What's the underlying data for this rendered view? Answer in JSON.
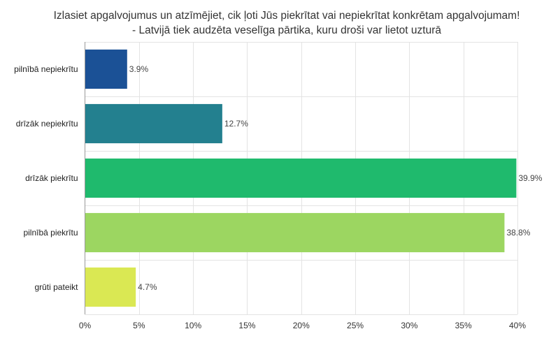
{
  "chart_data": {
    "type": "bar",
    "orientation": "horizontal",
    "title_lines": [
      "Izlasiet apgalvojumus un atzīmējiet, cik ļoti Jūs piekrītat vai nepiekrītat konkrētam apgalvojumam!",
      "- Latvijā tiek audzēta veselīga pārtika, kuru droši var lietot uzturā"
    ],
    "categories": [
      "pilnībā nepiekrītu",
      "drīzāk nepiekrītu",
      "drīzāk piekrītu",
      "pilnībā piekrītu",
      "grūti pateikt"
    ],
    "values": [
      3.9,
      12.7,
      39.9,
      38.8,
      4.7
    ],
    "value_labels": [
      "3.9%",
      "12.7%",
      "39.9%",
      "38.8%",
      "4.7%"
    ],
    "bar_colors": [
      "#1b5196",
      "#23808f",
      "#1fba6d",
      "#9cd661",
      "#dae853"
    ],
    "xlim": [
      0,
      40
    ],
    "xticks": [
      0,
      5,
      10,
      15,
      20,
      25,
      30,
      35,
      40
    ],
    "xtick_labels": [
      "0%",
      "5%",
      "10%",
      "15%",
      "20%",
      "25%",
      "30%",
      "35%",
      "40%"
    ],
    "xlabel": "",
    "ylabel": "",
    "grid": true,
    "legend": "none"
  }
}
